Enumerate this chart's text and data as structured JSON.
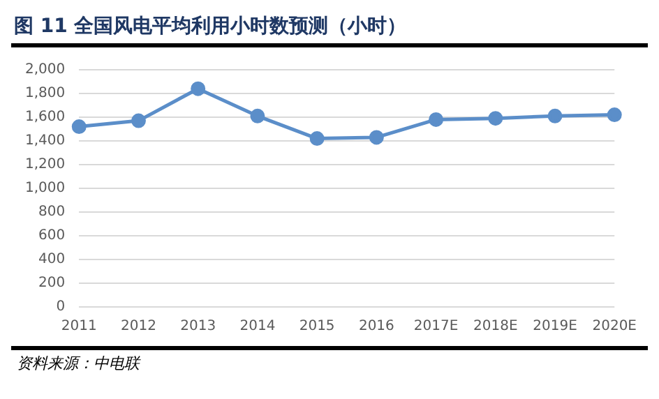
{
  "chart_data": {
    "type": "line",
    "title": "图 11 全国风电平均利用小时数预测（小时）",
    "categories": [
      "2011",
      "2012",
      "2013",
      "2014",
      "2015",
      "2016",
      "2017E",
      "2018E",
      "2019E",
      "2020E"
    ],
    "series": [
      {
        "color": "#5b8ec9",
        "values": [
          1520,
          1570,
          1840,
          1610,
          1420,
          1430,
          1580,
          1590,
          1610,
          1620
        ]
      }
    ],
    "ylim": [
      0,
      2000
    ],
    "yticks": [
      {
        "value": 0,
        "label": "0"
      },
      {
        "value": 200,
        "label": "200"
      },
      {
        "value": 400,
        "label": "400"
      },
      {
        "value": 600,
        "label": "600"
      },
      {
        "value": 800,
        "label": "800"
      },
      {
        "value": 1000,
        "label": "1,000"
      },
      {
        "value": 1200,
        "label": "1,200"
      },
      {
        "value": 1400,
        "label": "1,400"
      },
      {
        "value": 1600,
        "label": "1,600"
      },
      {
        "value": 1800,
        "label": "1,800"
      },
      {
        "value": 2000,
        "label": "2,000"
      }
    ],
    "grid": "y",
    "legend": false,
    "marker": "circle",
    "line_style": "solid",
    "annotations": [
      "资料来源：中电联"
    ]
  }
}
